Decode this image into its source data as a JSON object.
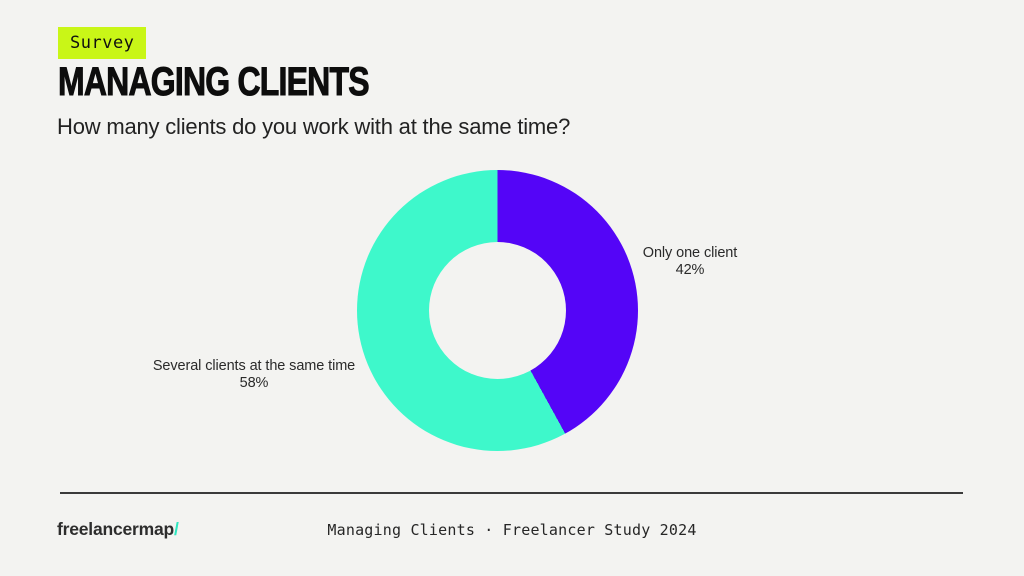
{
  "page": {
    "background": "#f3f3f1"
  },
  "header": {
    "badge": {
      "label": "Survey",
      "bg": "#c9f617",
      "text_color": "#101010"
    },
    "title": "MANAGING CLIENTS",
    "subtitle": "How many clients do you work with at the same time?"
  },
  "chart_data": {
    "type": "pie",
    "variant": "donut",
    "title": "MANAGING CLIENTS",
    "question": "How many clients do you work with at the same time?",
    "start_angle_deg": 0,
    "direction": "clockwise",
    "hole_ratio": 0.49,
    "legend_position": "labels-beside-slices",
    "segments": [
      {
        "label": "Only one client",
        "value": 42,
        "value_label": "42%",
        "color": "#5405f7"
      },
      {
        "label": "Several clients at the same time",
        "value": 58,
        "value_label": "58%",
        "color": "#3ef8cb"
      }
    ]
  },
  "footer": {
    "logo_text": "freelancermap",
    "logo_slash": "/",
    "logo_slash_color": "#2fe6c0",
    "caption": "Managing Clients · Freelancer Study 2024"
  }
}
